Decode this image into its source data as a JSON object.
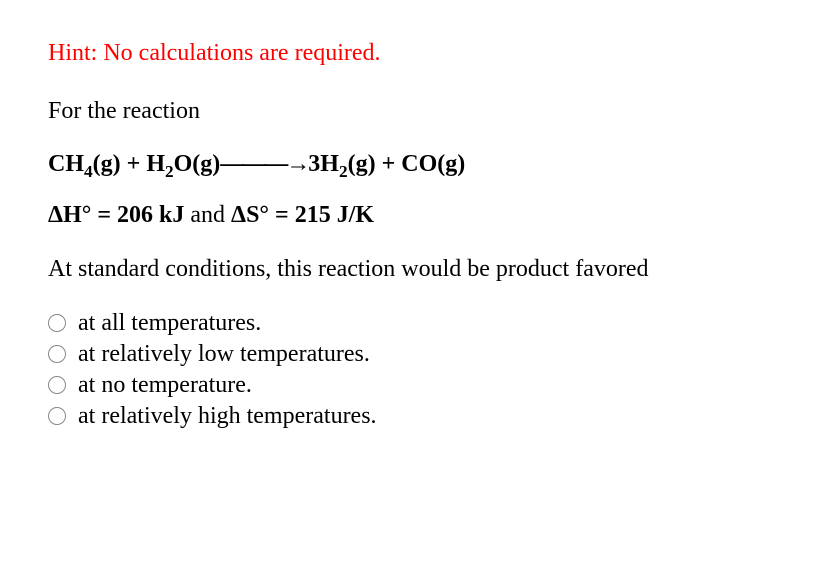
{
  "hint": "Hint: No calculations are required.",
  "lead": "For the reaction",
  "equation": {
    "r1_species": "CH",
    "r1_sub": "4",
    "r1_phase": "(g)",
    "plus1": " + ",
    "r2_species": "H",
    "r2_sub": "2",
    "r2_species2": "O",
    "r2_phase": "(g)",
    "arrow": "———→",
    "p1_coeff": "3",
    "p1_species": "H",
    "p1_sub": "2",
    "p1_phase": "(g)",
    "plus2": " + ",
    "p2_species": "CO",
    "p2_phase": "(g)"
  },
  "thermo": {
    "dH_label": "ΔH°",
    "eq1": " = ",
    "dH_value": "206 kJ",
    "and": " and ",
    "dS_label": "ΔS°",
    "eq2": " = ",
    "dS_value": "215 J/K"
  },
  "question": "At standard conditions, this reaction would be product favored",
  "options": [
    "at all temperatures.",
    "at relatively low temperatures.",
    "at no temperature.",
    "at relatively high temperatures."
  ],
  "colors": {
    "hint": "#ff0000",
    "text": "#000000",
    "radio_border": "#888888",
    "background": "#ffffff"
  },
  "font": {
    "family": "Times New Roman",
    "size_pt": 18
  }
}
